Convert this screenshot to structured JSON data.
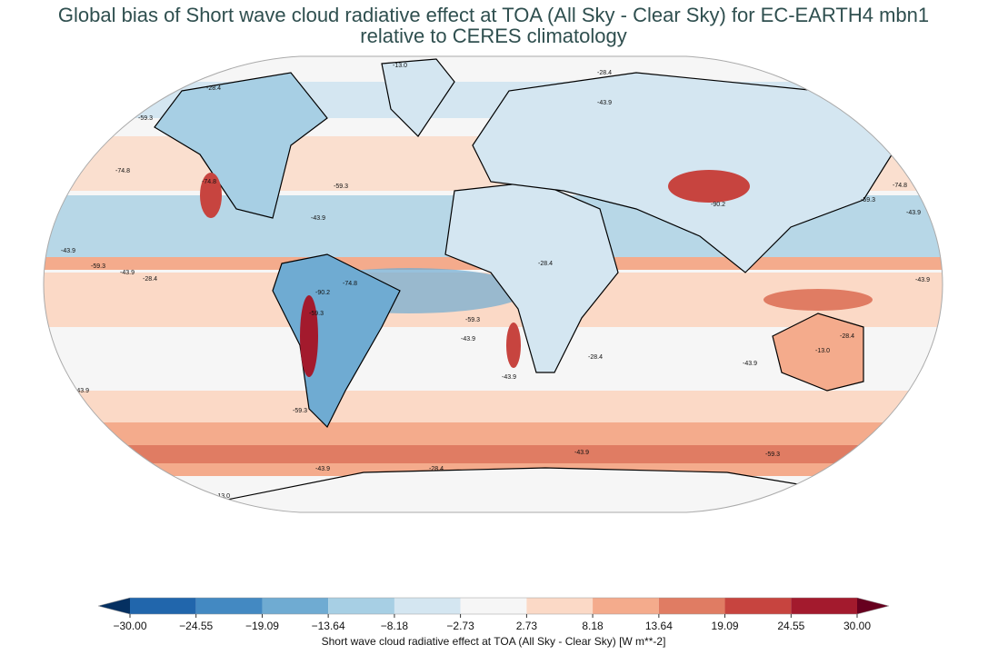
{
  "chart_data": {
    "type": "map",
    "title": [
      "Global bias of Short wave cloud radiative effect at TOA (All Sky - Clear Sky) for EC-EARTH4 mbn1",
      "relative to CERES climatology"
    ],
    "contour_levels": [
      "-13.0",
      "-28.4",
      "-43.9",
      "-59.3",
      "-74.8",
      "-90.2"
    ],
    "colorbar": {
      "label": "Short wave cloud radiative effect at TOA (All Sky - Clear Sky) [W m**-2]",
      "clim": [
        -30,
        30
      ],
      "ticks": [
        {
          "value": -30,
          "label": "−30.00"
        },
        {
          "value": -24.55,
          "label": "−24.55"
        },
        {
          "value": -19.09,
          "label": "−19.09"
        },
        {
          "value": -13.64,
          "label": "−13.64"
        },
        {
          "value": -8.18,
          "label": "−8.18"
        },
        {
          "value": -2.73,
          "label": "−2.73"
        },
        {
          "value": 2.73,
          "label": "2.73"
        },
        {
          "value": 8.18,
          "label": "8.18"
        },
        {
          "value": 13.64,
          "label": "13.64"
        },
        {
          "value": 19.09,
          "label": "19.09"
        },
        {
          "value": 24.55,
          "label": "24.55"
        },
        {
          "value": 30,
          "label": "30.00"
        }
      ],
      "colors": [
        "#2166ac",
        "#4389c2",
        "#6fabd2",
        "#a7cfe4",
        "#d4e6f1",
        "#f6f6f6",
        "#fbd9c6",
        "#f4ab8c",
        "#e07c63",
        "#c7443f",
        "#a31a2d"
      ],
      "under": "#053061",
      "over": "#67001f"
    }
  }
}
